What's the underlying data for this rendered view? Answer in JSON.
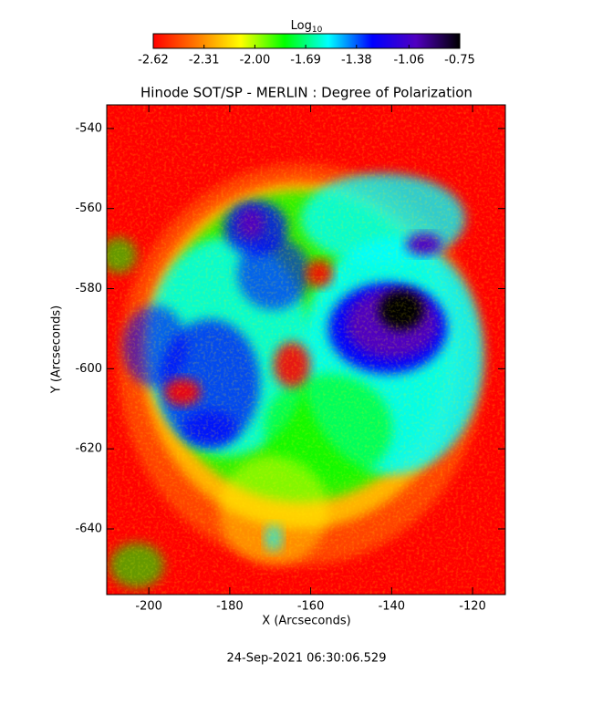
{
  "chart_data": {
    "type": "image",
    "title": "Hinode SOT/SP - MERLIN : Degree of Polarization",
    "xlabel": "X (Arcseconds)",
    "ylabel": "Y (Arcseconds)",
    "footer": "24-Sep-2021 06:30:06.529",
    "colorbar": {
      "label": "Log",
      "label_subscript": "10",
      "lim": [
        -2.62,
        -0.75
      ],
      "ticks": [
        -2.62,
        -2.31,
        {
          "value": -2,
          "label": "-2.00"
        },
        -1.69,
        -1.38,
        -1.06,
        -0.75
      ]
    },
    "colormap": [
      "#ff0000",
      "#ff7a00",
      "#ffff00",
      "#00ff00",
      "#00ffff",
      "#0000ff",
      "#5000c0",
      "#000000"
    ],
    "xlim": [
      -210.4,
      -111.9
    ],
    "xticks": [
      -200,
      -180,
      -160,
      -140,
      -120
    ],
    "ylim": [
      -656.4,
      -534.1
    ],
    "yticks": [
      -540,
      -560,
      -580,
      -600,
      -620,
      -640
    ]
  }
}
